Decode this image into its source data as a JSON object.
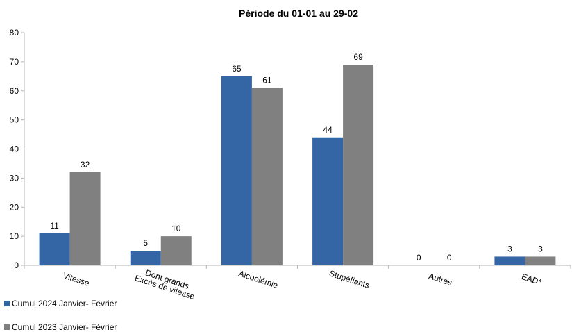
{
  "chart_data": {
    "type": "bar",
    "title": "Période du 01-01 au 29-02",
    "categories": [
      "Vitesse",
      "Dont grands\nExcès de vitesse",
      "Alcoolémie",
      "Stupéfiants",
      "Autres",
      "EAD*"
    ],
    "series": [
      {
        "name": "Cumul 2024 Janvier- Février",
        "color": "#3465a4",
        "values": [
          11,
          5,
          65,
          44,
          0,
          3
        ]
      },
      {
        "name": "Cumul 2023 Janvier- Février",
        "color": "#808080",
        "values": [
          32,
          10,
          61,
          69,
          0,
          3
        ]
      }
    ],
    "ylim": [
      0,
      80
    ],
    "yticks": [
      0,
      10,
      20,
      30,
      40,
      50,
      60,
      70,
      80
    ],
    "grid": false,
    "legend_position": "bottom-left"
  }
}
